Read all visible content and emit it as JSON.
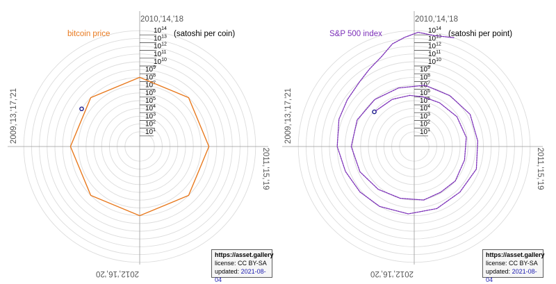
{
  "chart_data": [
    {
      "type": "polar-line",
      "title": "bitcoin price",
      "unit_label": "(satoshi per coin)",
      "angular_labels": [
        "2010,'14,'18",
        "2011,'15,'19",
        "2012,'16,'20",
        "2009,'13,'17,'21"
      ],
      "radial_ticks": [
        1,
        2,
        3,
        4,
        5,
        6,
        7,
        8,
        9,
        10,
        11,
        12,
        13,
        14
      ],
      "radial_scale": "log10",
      "series": [
        {
          "name": "bitcoin price",
          "color": "#e8791e",
          "style": "solid",
          "points": [
            [
              0,
              8.0
            ],
            [
              45,
              8.0
            ],
            [
              90,
              8.0
            ],
            [
              135,
              8.0
            ],
            [
              180,
              8.0
            ],
            [
              225,
              8.0
            ],
            [
              270,
              8.0
            ],
            [
              315,
              8.0
            ],
            [
              360,
              8.0
            ]
          ]
        }
      ],
      "marker": {
        "angle": 303,
        "value": 8.0,
        "color": "#1a1a8c"
      }
    },
    {
      "type": "polar-line",
      "title": "S&P 500 index",
      "unit_label": "(satoshi per point)",
      "angular_labels": [
        "2010,'14,'18",
        "2011,'15,'19",
        "2012,'16,'20",
        "2009,'13,'17,'21"
      ],
      "radial_ticks": [
        1,
        2,
        3,
        4,
        5,
        6,
        7,
        8,
        9,
        10,
        11,
        12,
        13,
        14
      ],
      "radial_scale": "log10",
      "series": [
        {
          "name": "S&P 500 index",
          "color": "#7b2fb8",
          "style": "dotted",
          "points": [
            [
              311,
              5.9
            ],
            [
              335,
              5.8
            ],
            [
              355,
              5.7
            ],
            [
              10,
              5.6
            ],
            [
              30,
              5.6
            ],
            [
              55,
              5.8
            ],
            [
              80,
              5.9
            ],
            [
              105,
              5.8
            ],
            [
              130,
              6.0
            ],
            [
              150,
              5.9
            ],
            [
              170,
              6.1
            ],
            [
              195,
              6.0
            ],
            [
              220,
              6.3
            ],
            [
              245,
              6.8
            ],
            [
              270,
              7.2
            ],
            [
              295,
              7.2
            ],
            [
              320,
              7.0
            ],
            [
              345,
              6.9
            ],
            [
              370,
              7.1
            ],
            [
              395,
              7.1
            ],
            [
              420,
              7.4
            ],
            [
              445,
              7.3
            ],
            [
              470,
              7.6
            ],
            [
              495,
              7.4
            ],
            [
              520,
              7.6
            ],
            [
              545,
              7.8
            ],
            [
              570,
              8.0
            ],
            [
              590,
              8.2
            ],
            [
              610,
              8.5
            ],
            [
              630,
              9.0
            ],
            [
              650,
              9.4
            ],
            [
              665,
              9.6
            ],
            [
              680,
              10.0
            ],
            [
              690,
              10.6
            ],
            [
              700,
              11.4
            ],
            [
              708,
              12.6
            ],
            [
              715,
              13.2
            ],
            [
              722,
              13.8
            ],
            [
              730,
              13.6
            ],
            [
              740,
              14.0
            ]
          ]
        }
      ],
      "marker": {
        "angle": 311,
        "value": 5.9,
        "color": "#1a1a8c"
      }
    }
  ],
  "infobox": {
    "site": "https://asset.gallery",
    "license": "license: CC BY-SA",
    "updated_label": "updated:",
    "updated_date": "2021-08-04"
  }
}
